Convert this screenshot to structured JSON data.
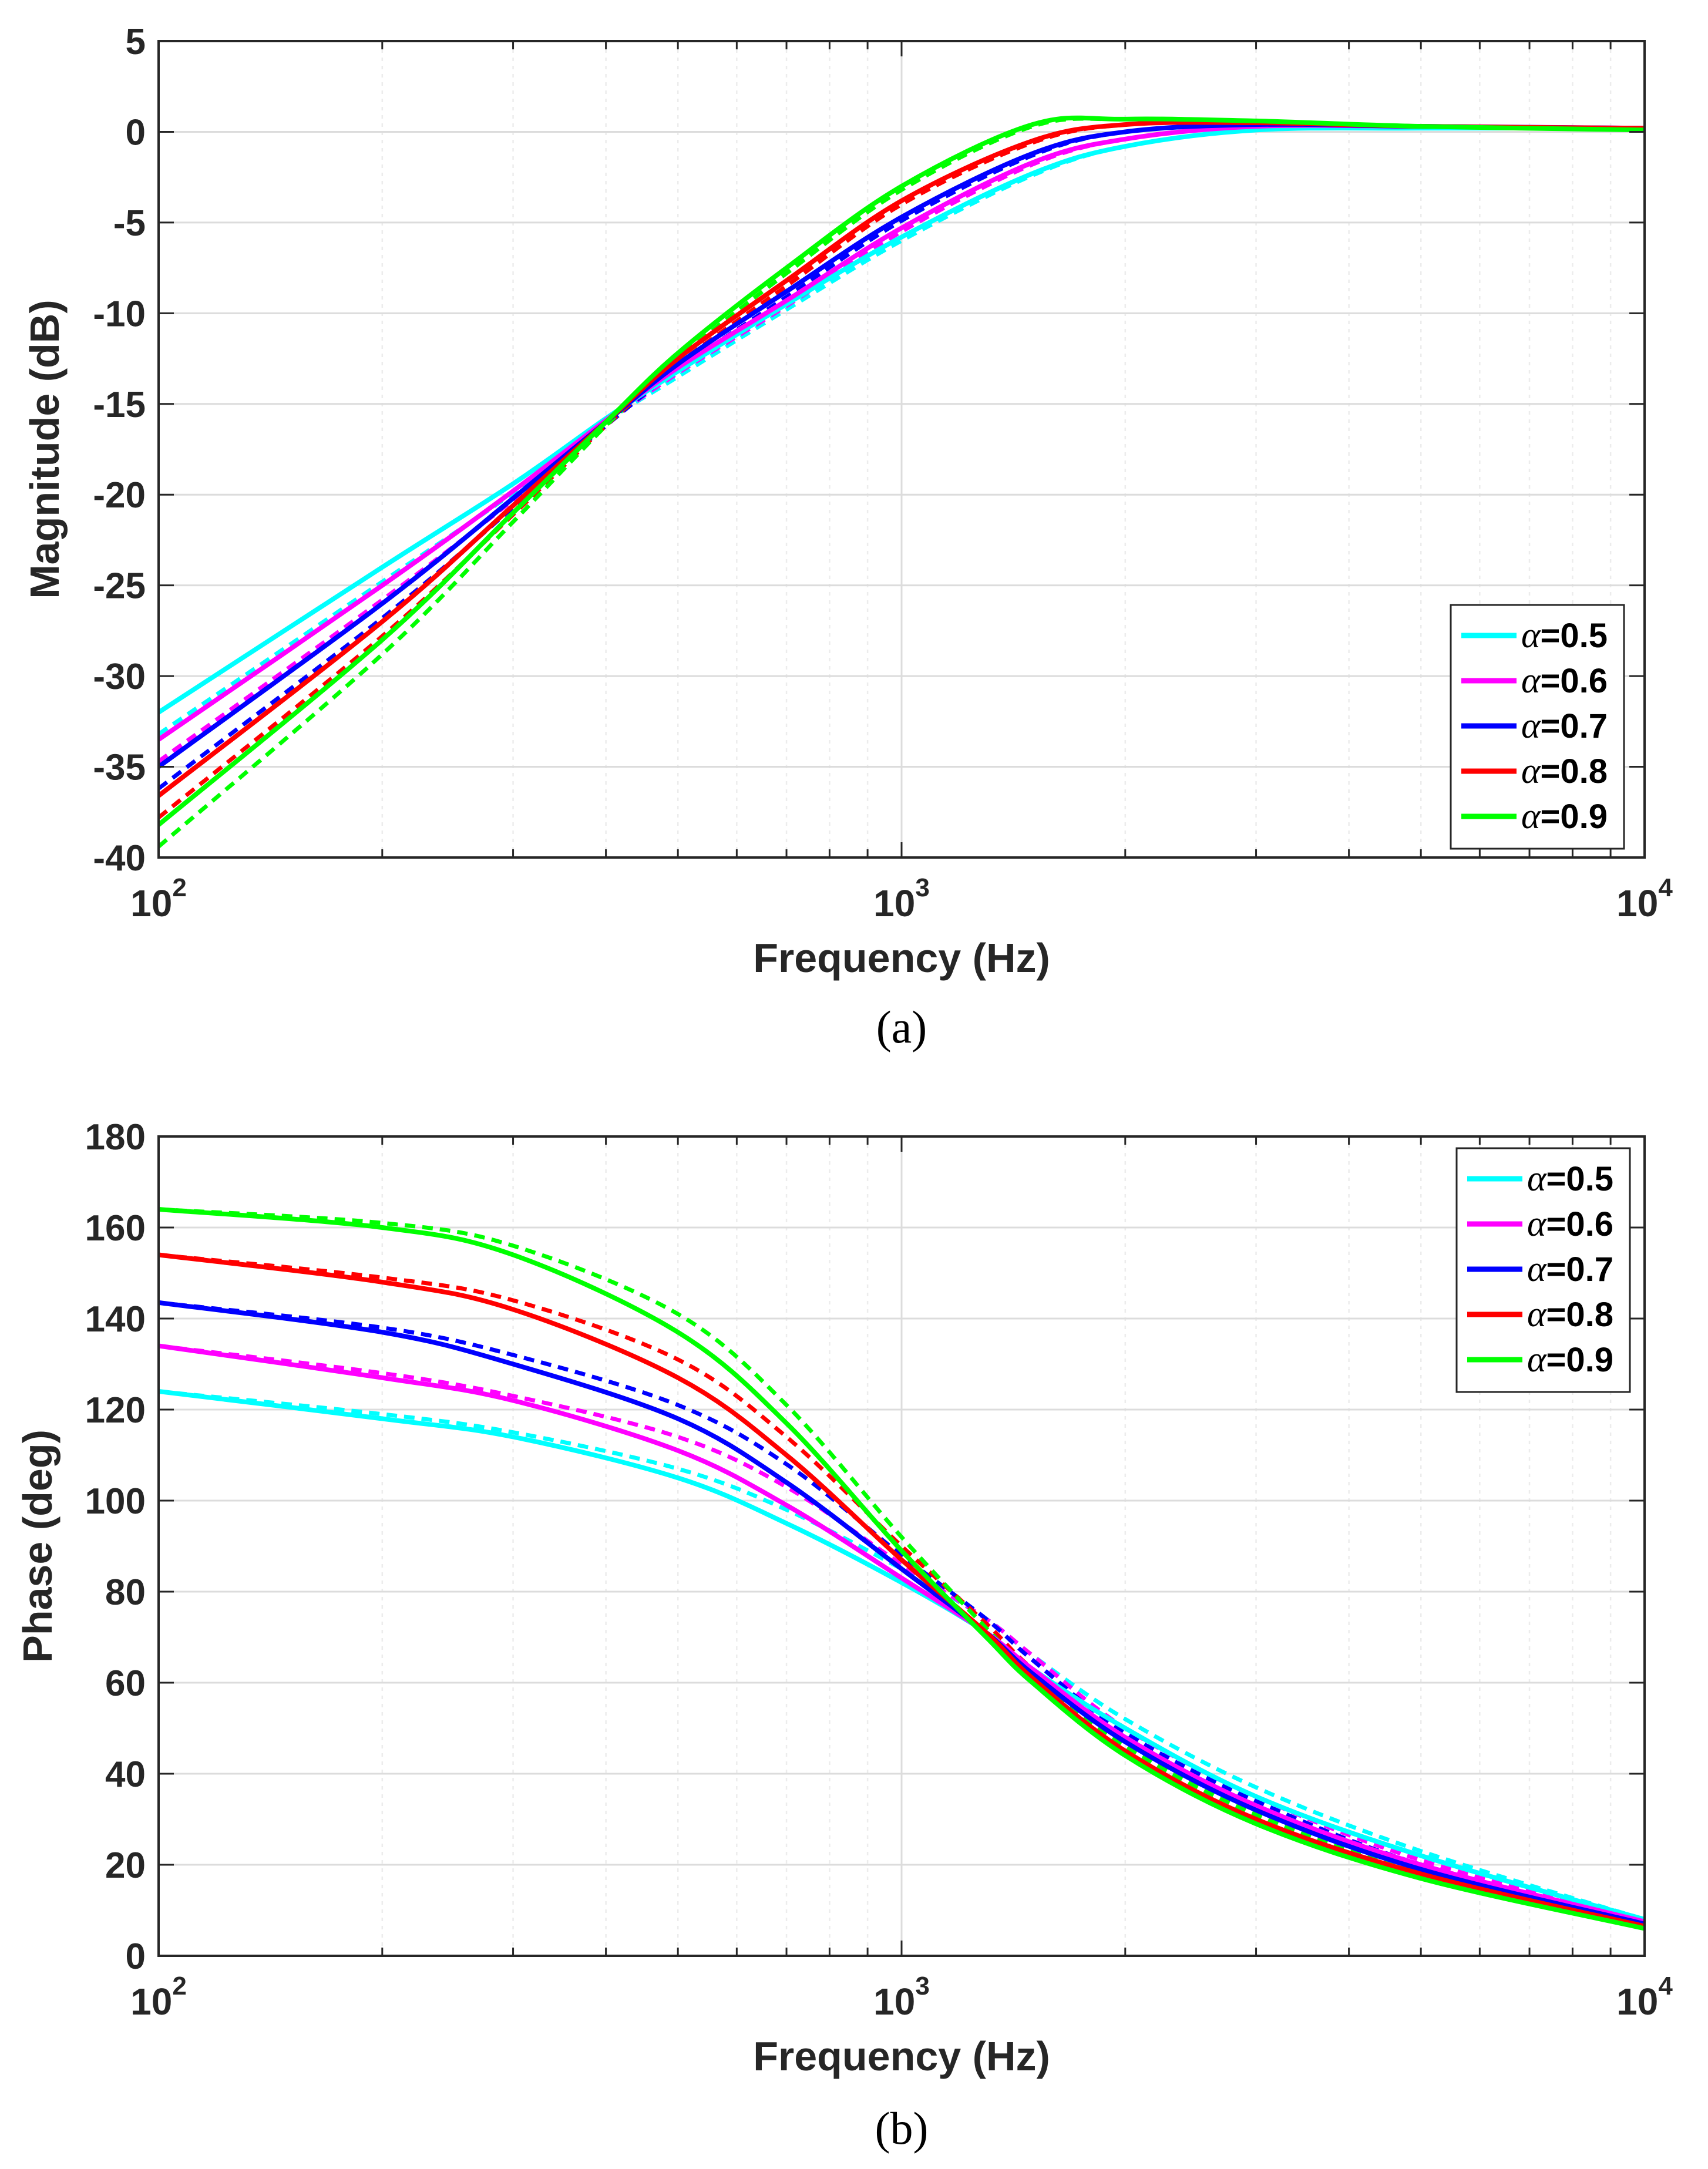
{
  "chart_data": [
    {
      "type": "line",
      "panel": "a",
      "caption": "(a)",
      "title": "",
      "xlabel": "Frequency (Hz)",
      "ylabel": "Magnitude (dB)",
      "xscale": "log",
      "xlim": [
        100,
        10000
      ],
      "ylim": [
        -40,
        5
      ],
      "xticks": [
        100,
        1000,
        10000
      ],
      "xtick_labels": [
        {
          "base": "10",
          "exp": "2"
        },
        {
          "base": "10",
          "exp": "3"
        },
        {
          "base": "10",
          "exp": "4"
        }
      ],
      "yticks": [
        5,
        0,
        -5,
        -10,
        -15,
        -20,
        -25,
        -30,
        -35,
        -40
      ],
      "ytick_labels": [
        "5",
        "0",
        "-5",
        "-10",
        "-15",
        "-20",
        "-25",
        "-30",
        "-35",
        "-40"
      ],
      "grid": true,
      "legend_position": "bottom-right",
      "x": [
        100,
        200,
        300,
        400,
        500,
        700,
        1000,
        1500,
        2000,
        3000,
        5000,
        10000
      ],
      "series": [
        {
          "name": "α=0.5",
          "symbol": "α",
          "value_text": "=0.5",
          "color": "#00ffff",
          "style": "solid",
          "values": [
            -32,
            -24,
            -19.4,
            -15.8,
            -13.2,
            -9.5,
            -5.8,
            -2.3,
            -0.8,
            0.1,
            0.2,
            0.2
          ]
        },
        {
          "name": "α=0.5 (dashed)",
          "color": "#00ffff",
          "style": "dashed",
          "values": [
            -33.2,
            -24.8,
            -19.9,
            -16,
            -13.5,
            -9.8,
            -6,
            -2.4,
            -0.8,
            0.1,
            0.2,
            0.2
          ]
        },
        {
          "name": "α=0.6",
          "symbol": "α",
          "value_text": "=0.6",
          "color": "#ff00ff",
          "style": "solid",
          "values": [
            -33.5,
            -25,
            -19.8,
            -15.9,
            -13,
            -9.3,
            -5.3,
            -1.7,
            -0.4,
            0.3,
            0.3,
            0.2
          ]
        },
        {
          "name": "α=0.6 (dashed)",
          "color": "#ff00ff",
          "style": "dashed",
          "values": [
            -34.7,
            -25.8,
            -20.3,
            -16.1,
            -13.3,
            -9.6,
            -5.5,
            -1.8,
            -0.4,
            0.3,
            0.3,
            0.2
          ]
        },
        {
          "name": "α=0.7",
          "symbol": "α",
          "value_text": "=0.7",
          "color": "#0000ff",
          "style": "solid",
          "values": [
            -35,
            -26,
            -20.2,
            -16,
            -12.8,
            -8.8,
            -4.7,
            -1.2,
            0,
            0.4,
            0.3,
            0.2
          ]
        },
        {
          "name": "α=0.7 (dashed)",
          "color": "#0000ff",
          "style": "dashed",
          "values": [
            -36.2,
            -26.8,
            -20.7,
            -16.2,
            -13.1,
            -9.1,
            -4.9,
            -1.3,
            0,
            0.4,
            0.3,
            0.2
          ]
        },
        {
          "name": "α=0.8",
          "symbol": "α",
          "value_text": "=0.8",
          "color": "#ff0000",
          "style": "solid",
          "values": [
            -36.6,
            -27,
            -20.6,
            -16,
            -12.5,
            -8.2,
            -3.8,
            -0.5,
            0.4,
            0.5,
            0.3,
            0.2
          ]
        },
        {
          "name": "α=0.8 (dashed)",
          "color": "#ff0000",
          "style": "dashed",
          "values": [
            -37.8,
            -27.8,
            -21.1,
            -16.2,
            -12.8,
            -8.5,
            -4,
            -0.6,
            0.4,
            0.5,
            0.3,
            0.2
          ]
        },
        {
          "name": "α=0.9",
          "symbol": "α",
          "value_text": "=0.9",
          "color": "#00ff00",
          "style": "solid",
          "values": [
            -38.2,
            -28,
            -21,
            -16,
            -12.2,
            -7.5,
            -3,
            0.4,
            0.7,
            0.6,
            0.3,
            0.1
          ]
        },
        {
          "name": "α=0.9 (dashed)",
          "color": "#00ff00",
          "style": "dashed",
          "values": [
            -39.4,
            -28.8,
            -21.5,
            -16.2,
            -12.5,
            -7.8,
            -3.2,
            0.3,
            0.7,
            0.6,
            0.3,
            0.1
          ]
        }
      ]
    },
    {
      "type": "line",
      "panel": "b",
      "caption": "(b)",
      "title": "",
      "xlabel": "Frequency (Hz)",
      "ylabel": "Phase (deg)",
      "xscale": "log",
      "xlim": [
        100,
        10000
      ],
      "ylim": [
        0,
        180
      ],
      "xticks": [
        100,
        1000,
        10000
      ],
      "xtick_labels": [
        {
          "base": "10",
          "exp": "2"
        },
        {
          "base": "10",
          "exp": "3"
        },
        {
          "base": "10",
          "exp": "4"
        }
      ],
      "yticks": [
        180,
        160,
        140,
        120,
        100,
        80,
        60,
        40,
        20,
        0
      ],
      "ytick_labels": [
        "180",
        "160",
        "140",
        "120",
        "100",
        "80",
        "60",
        "40",
        "20",
        "0"
      ],
      "grid": true,
      "legend_position": "top-right",
      "x": [
        100,
        200,
        300,
        500,
        700,
        1000,
        1300,
        1500,
        2000,
        3000,
        5000,
        10000
      ],
      "series": [
        {
          "name": "α=0.5",
          "symbol": "α",
          "value_text": "=0.5",
          "color": "#00ffff",
          "style": "solid",
          "values": [
            124,
            118,
            114,
            105,
            95,
            82,
            71,
            63,
            50,
            35,
            22,
            8
          ]
        },
        {
          "name": "α=0.5 (dashed)",
          "color": "#00ffff",
          "style": "dashed",
          "values": [
            124,
            119,
            115,
            107,
            98,
            85,
            74,
            66,
            52,
            37,
            23,
            8
          ]
        },
        {
          "name": "α=0.6",
          "symbol": "α",
          "value_text": "=0.6",
          "color": "#ff00ff",
          "style": "solid",
          "values": [
            134,
            127,
            122,
            111,
            99,
            83,
            71,
            63,
            48,
            33,
            20,
            7.5
          ]
        },
        {
          "name": "α=0.6 (dashed)",
          "color": "#ff00ff",
          "style": "dashed",
          "values": [
            134,
            128,
            123,
            114,
            103,
            86,
            74,
            66,
            50,
            35,
            21,
            7.5
          ]
        },
        {
          "name": "α=0.7",
          "symbol": "α",
          "value_text": "=0.7",
          "color": "#0000ff",
          "style": "solid",
          "values": [
            143.5,
            137,
            130,
            118,
            104,
            85,
            71,
            62,
            47,
            32,
            19,
            7
          ]
        },
        {
          "name": "α=0.7 (dashed)",
          "color": "#0000ff",
          "style": "dashed",
          "values": [
            143.5,
            138,
            132,
            121,
            108,
            88,
            74,
            65,
            49,
            34,
            20,
            7
          ]
        },
        {
          "name": "α=0.8",
          "symbol": "α",
          "value_text": "=0.8",
          "color": "#ff0000",
          "style": "solid",
          "values": [
            154,
            148,
            142,
            127,
            110,
            87,
            71,
            61,
            45,
            30,
            18,
            6.5
          ]
        },
        {
          "name": "α=0.8 (dashed)",
          "color": "#ff0000",
          "style": "dashed",
          "values": [
            154,
            149,
            144,
            131,
            114,
            90,
            73,
            63,
            47,
            32,
            19,
            6.5
          ]
        },
        {
          "name": "α=0.9",
          "symbol": "α",
          "value_text": "=0.9",
          "color": "#00ff00",
          "style": "solid",
          "values": [
            164,
            160,
            154,
            137,
            117,
            89,
            70,
            60,
            44,
            29,
            17,
            6
          ]
        },
        {
          "name": "α=0.9 (dashed)",
          "color": "#00ff00",
          "style": "dashed",
          "values": [
            164,
            161,
            156,
            141,
            121,
            92,
            72,
            62,
            46,
            31,
            18,
            6
          ]
        }
      ]
    }
  ]
}
